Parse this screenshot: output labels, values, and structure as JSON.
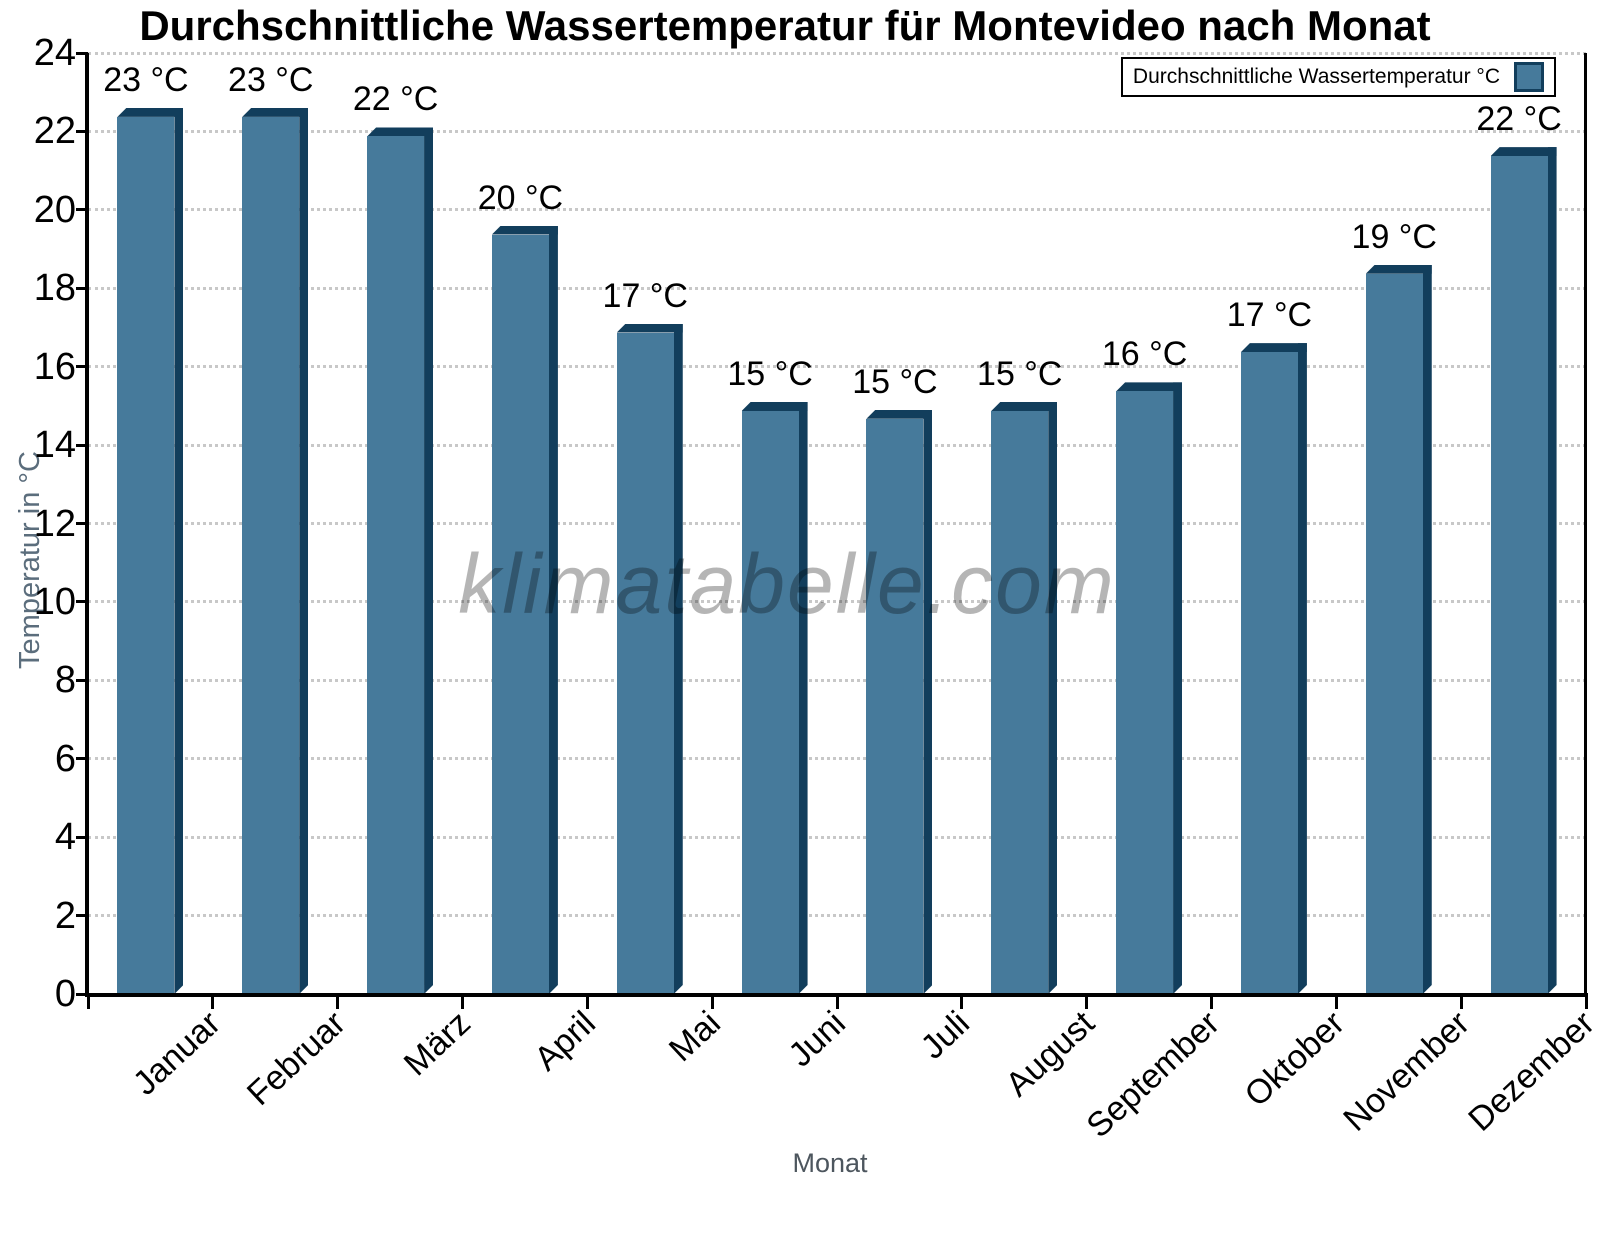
{
  "chart_data": {
    "type": "bar",
    "title": "Durchschnittliche Wassertemperatur für Montevideo nach Monat",
    "xlabel": "Monat",
    "ylabel": "Temperatur in °C",
    "watermark": "klimatabelle.com",
    "legend": {
      "label": "Durchschnittliche Wassertemperatur °C",
      "position": "top-right"
    },
    "categories": [
      "Januar",
      "Februar",
      "März",
      "April",
      "Mai",
      "Juni",
      "Juli",
      "August",
      "September",
      "Oktober",
      "November",
      "Dezember"
    ],
    "values": [
      22.6,
      22.6,
      22.1,
      19.6,
      17.1,
      15.1,
      14.9,
      15.1,
      15.6,
      16.6,
      18.6,
      21.6
    ],
    "bar_labels": [
      "23 °C",
      "23 °C",
      "22 °C",
      "20 °C",
      "17 °C",
      "15 °C",
      "15 °C",
      "15 °C",
      "16 °C",
      "17 °C",
      "19 °C",
      "22 °C"
    ],
    "ylim": [
      0,
      24
    ],
    "yticks": [
      0,
      2,
      4,
      6,
      8,
      10,
      12,
      14,
      16,
      18,
      20,
      22,
      24
    ],
    "grid": "horizontal-dotted",
    "legend_position": "top-right",
    "colors": {
      "bar": "#467A9B",
      "bar_edge": "#123E5C",
      "grid": "#c8c8c8",
      "axis": "#000000",
      "axis_title": "#5b6d7c",
      "watermark": "rgba(0,0,0,0.29)"
    }
  }
}
